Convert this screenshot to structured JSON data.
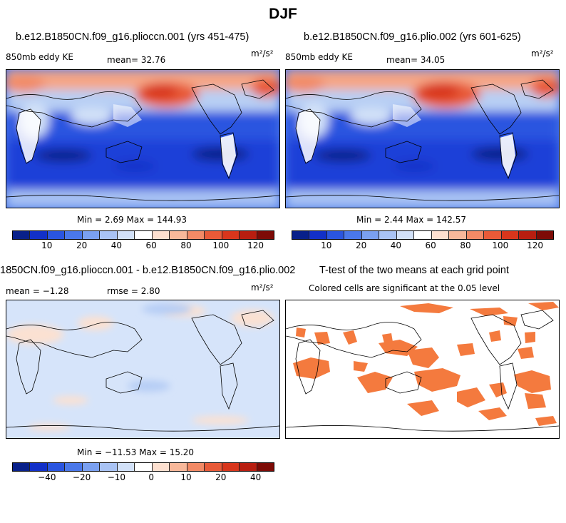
{
  "figure_title": "DJF",
  "panels": {
    "p1": {
      "title": "b.e12.B1850CN.f09_g16.plioccn.001 (yrs 451-475)",
      "variable": "850mb eddy KE",
      "mean_text": "mean=  32.76",
      "units": "m²/s²",
      "minmax": "Min =   2.69 Max = 144.93"
    },
    "p2": {
      "title": "b.e12.B1850CN.f09_g16.plio.002 (yrs 601-625)",
      "variable": "850mb eddy KE",
      "mean_text": "mean=  34.05",
      "units": "m²/s²",
      "minmax": "Min =   2.44 Max = 142.57"
    },
    "p3": {
      "title": "1850CN.f09_g16.plioccn.001 - b.e12.B1850CN.f09_g16.plio.002",
      "mean_text": "mean =  −1.28",
      "rmse_text": "rmse =   2.80",
      "units": "m²/s²",
      "minmax": "Min = −11.53 Max =  15.20"
    },
    "p4": {
      "title": "T-test of the two means at each grid point",
      "subtitle": "Colored cells are significant at the 0.05 level"
    }
  },
  "colorbar_main": {
    "ticks": [
      "10",
      "20",
      "40",
      "60",
      "80",
      "100",
      "120"
    ],
    "colors": [
      "#08208a",
      "#1230c8",
      "#2a55e0",
      "#4a78ea",
      "#7aa0f0",
      "#a9c3f4",
      "#d2e1f8",
      "#ffffff",
      "#fde0d0",
      "#f8b89a",
      "#f28a66",
      "#e85a38",
      "#d8361c",
      "#b81e10",
      "#7d0b06"
    ]
  },
  "colorbar_diff": {
    "ticks": [
      "−40",
      "−20",
      "−10",
      "0",
      "10",
      "20",
      "40"
    ],
    "colors": [
      "#08208a",
      "#1230c8",
      "#2a55e0",
      "#4a78ea",
      "#7aa0f0",
      "#a9c3f4",
      "#d2e1f8",
      "#ffffff",
      "#fde0d0",
      "#f8b89a",
      "#f28a66",
      "#e85a38",
      "#d8361c",
      "#b81e10",
      "#7d0b06"
    ]
  },
  "colors": {
    "ttest_fill": "#f47a3e",
    "diff_blue": "#d6e4fa",
    "diff_pink": "#fbe1d2"
  }
}
